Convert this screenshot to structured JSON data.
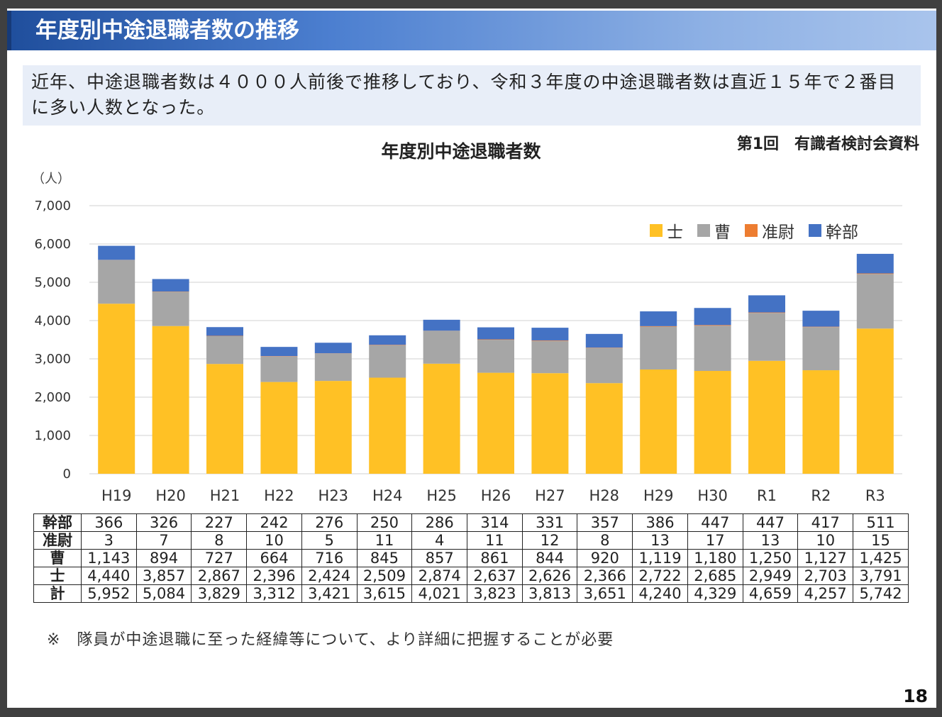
{
  "slide": {
    "title": "年度別中途退職者数の推移",
    "summary": "近年、中途退職者数は４０００人前後で推移しており、令和３年度の中途退職者数は直近１５年で２番目に多い人数となった。",
    "source_note": "第1回　有識者検討会資料",
    "footnote": "※　隊員が中途退職に至った経緯等について、より詳細に把握することが必要",
    "page_number": "18"
  },
  "chart_data": {
    "type": "bar",
    "stacked": true,
    "title": "年度別中途退職者数",
    "ylabel": "（人）",
    "xlabel": "",
    "ylim": [
      0,
      7000
    ],
    "yticks": [
      0,
      1000,
      2000,
      3000,
      4000,
      5000,
      6000,
      7000
    ],
    "ytick_labels": [
      "0",
      "1,000",
      "2,000",
      "3,000",
      "4,000",
      "5,000",
      "6,000",
      "7,000"
    ],
    "grid": true,
    "legend_position": "top-right",
    "categories": [
      "H19",
      "H20",
      "H21",
      "H22",
      "H23",
      "H24",
      "H25",
      "H26",
      "H27",
      "H28",
      "H29",
      "H30",
      "R1",
      "R2",
      "R3"
    ],
    "series": [
      {
        "name": "士",
        "color": "#FFC125",
        "values": [
          4440,
          3857,
          2867,
          2396,
          2424,
          2509,
          2874,
          2637,
          2626,
          2366,
          2722,
          2685,
          2949,
          2703,
          3791
        ]
      },
      {
        "name": "曹",
        "color": "#A6A6A6",
        "values": [
          1143,
          894,
          727,
          664,
          716,
          845,
          857,
          861,
          844,
          920,
          1119,
          1180,
          1250,
          1127,
          1425
        ]
      },
      {
        "name": "准尉",
        "color": "#ED7D31",
        "values": [
          3,
          7,
          8,
          10,
          5,
          11,
          4,
          11,
          12,
          8,
          13,
          17,
          13,
          10,
          15
        ]
      },
      {
        "name": "幹部",
        "color": "#4472C4",
        "values": [
          366,
          326,
          227,
          242,
          276,
          250,
          286,
          314,
          331,
          357,
          386,
          447,
          447,
          417,
          511
        ]
      }
    ],
    "table": {
      "rows": [
        {
          "label": "幹部",
          "cells": [
            "366",
            "326",
            "227",
            "242",
            "276",
            "250",
            "286",
            "314",
            "331",
            "357",
            "386",
            "447",
            "447",
            "417",
            "511"
          ]
        },
        {
          "label": "准尉",
          "cells": [
            "3",
            "7",
            "8",
            "10",
            "5",
            "11",
            "4",
            "11",
            "12",
            "8",
            "13",
            "17",
            "13",
            "10",
            "15"
          ]
        },
        {
          "label": "曹",
          "cells": [
            "1,143",
            "894",
            "727",
            "664",
            "716",
            "845",
            "857",
            "861",
            "844",
            "920",
            "1,119",
            "1,180",
            "1,250",
            "1,127",
            "1,425"
          ]
        },
        {
          "label": "士",
          "cells": [
            "4,440",
            "3,857",
            "2,867",
            "2,396",
            "2,424",
            "2,509",
            "2,874",
            "2,637",
            "2,626",
            "2,366",
            "2,722",
            "2,685",
            "2,949",
            "2,703",
            "3,791"
          ]
        },
        {
          "label": "計",
          "cells": [
            "5,952",
            "5,084",
            "3,829",
            "3,312",
            "3,421",
            "3,615",
            "4,021",
            "3,823",
            "3,813",
            "3,651",
            "4,240",
            "4,329",
            "4,659",
            "4,257",
            "5,742"
          ]
        }
      ]
    }
  }
}
